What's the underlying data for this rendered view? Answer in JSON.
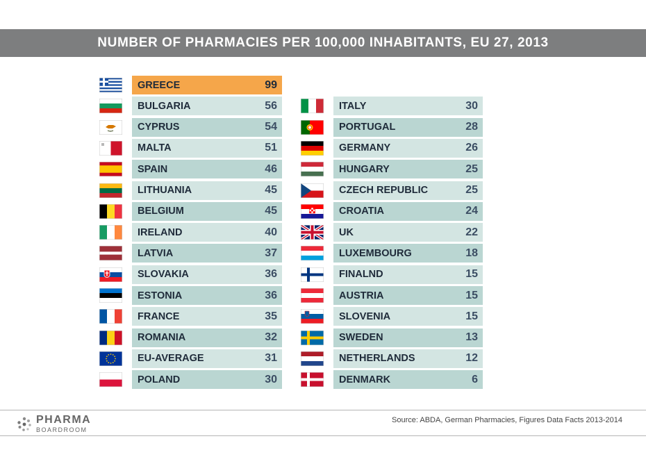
{
  "title": "NUMBER OF PHARMACIES PER 100,000 INHABITANTS, EU 27, 2013",
  "source": "Source: ABDA, German Pharmacies, Figures Data Facts 2013-2014",
  "logo": {
    "main": "PHARMA",
    "sub": "BOARDROOM"
  },
  "chart_data": {
    "type": "table",
    "title": "NUMBER OF PHARMACIES PER 100,000 INHABITANTS, EU 27, 2013",
    "highlight": "GREECE",
    "highlight_color": "#f5a64a",
    "left": [
      {
        "country": "GREECE",
        "value": 99,
        "flag": "greece-flag-icon"
      },
      {
        "country": "BULGARIA",
        "value": 56,
        "flag": "bulgaria-flag-icon"
      },
      {
        "country": "CYPRUS",
        "value": 54,
        "flag": "cyprus-flag-icon"
      },
      {
        "country": "MALTA",
        "value": 51,
        "flag": "malta-flag-icon"
      },
      {
        "country": "SPAIN",
        "value": 46,
        "flag": "spain-flag-icon"
      },
      {
        "country": "LITHUANIA",
        "value": 45,
        "flag": "lithuania-flag-icon"
      },
      {
        "country": "BELGIUM",
        "value": 45,
        "flag": "belgium-flag-icon"
      },
      {
        "country": "IRELAND",
        "value": 40,
        "flag": "ireland-flag-icon"
      },
      {
        "country": "LATVIA",
        "value": 37,
        "flag": "latvia-flag-icon"
      },
      {
        "country": "SLOVAKIA",
        "value": 36,
        "flag": "slovakia-flag-icon"
      },
      {
        "country": "ESTONIA",
        "value": 36,
        "flag": "estonia-flag-icon"
      },
      {
        "country": "FRANCE",
        "value": 35,
        "flag": "france-flag-icon"
      },
      {
        "country": "ROMANIA",
        "value": 32,
        "flag": "romania-flag-icon"
      },
      {
        "country": "EU-AVERAGE",
        "value": 31,
        "flag": "eu-flag-icon"
      },
      {
        "country": "POLAND",
        "value": 30,
        "flag": "poland-flag-icon"
      }
    ],
    "right": [
      {
        "country": "ITALY",
        "value": 30,
        "flag": "italy-flag-icon"
      },
      {
        "country": "PORTUGAL",
        "value": 28,
        "flag": "portugal-flag-icon"
      },
      {
        "country": "GERMANY",
        "value": 26,
        "flag": "germany-flag-icon"
      },
      {
        "country": "HUNGARY",
        "value": 25,
        "flag": "hungary-flag-icon"
      },
      {
        "country": "CZECH REPUBLIC",
        "value": 25,
        "flag": "czech-republic-flag-icon"
      },
      {
        "country": "CROATIA",
        "value": 24,
        "flag": "croatia-flag-icon"
      },
      {
        "country": "UK",
        "value": 22,
        "flag": "uk-flag-icon"
      },
      {
        "country": "LUXEMBOURG",
        "value": 18,
        "flag": "luxembourg-flag-icon"
      },
      {
        "country": "FINALND",
        "value": 15,
        "flag": "finland-flag-icon"
      },
      {
        "country": "AUSTRIA",
        "value": 15,
        "flag": "austria-flag-icon"
      },
      {
        "country": "SLOVENIA",
        "value": 15,
        "flag": "slovenia-flag-icon"
      },
      {
        "country": "SWEDEN",
        "value": 13,
        "flag": "sweden-flag-icon"
      },
      {
        "country": "NETHERLANDS",
        "value": 12,
        "flag": "netherlands-flag-icon"
      },
      {
        "country": "DENMARK",
        "value": 6,
        "flag": "denmark-flag-icon"
      }
    ]
  }
}
